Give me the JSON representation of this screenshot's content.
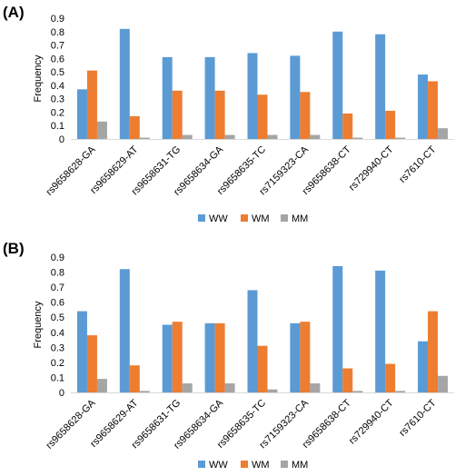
{
  "chart_data": [
    {
      "type": "bar",
      "panel_label": "(A)",
      "categories": [
        "rs9658628-GA",
        "rs9658629-AT",
        "rs9658631-TG",
        "rs9658634-GA",
        "rs9658635-TC",
        "rs7159323-CA",
        "rs9658638-CT",
        "rs729940-CT",
        "rs7610-CT"
      ],
      "series": [
        {
          "name": "WW",
          "color": "#5b9bd5",
          "values": [
            0.37,
            0.82,
            0.61,
            0.61,
            0.64,
            0.62,
            0.8,
            0.78,
            0.48
          ]
        },
        {
          "name": "WM",
          "color": "#ed7d31",
          "values": [
            0.51,
            0.17,
            0.36,
            0.36,
            0.33,
            0.35,
            0.19,
            0.21,
            0.43
          ]
        },
        {
          "name": "MM",
          "color": "#a5a5a5",
          "values": [
            0.13,
            0.01,
            0.03,
            0.03,
            0.03,
            0.03,
            0.01,
            0.01,
            0.08
          ]
        }
      ],
      "ylabel": "Frequency",
      "xlabel": "",
      "ylim": [
        0,
        0.9
      ],
      "yticks": [
        "0",
        "0.1",
        "0.2",
        "0.3",
        "0.4",
        "0.5",
        "0.6",
        "0.7",
        "0.8",
        "0.9"
      ],
      "legend": "bottom",
      "grid": false
    },
    {
      "type": "bar",
      "panel_label": "(B)",
      "categories": [
        "rs9658628-GA",
        "rs9658629-AT",
        "rs9658631-TG",
        "rs9658634-GA",
        "rs9658635-TC",
        "rs7159323-CA",
        "rs9658638-CT",
        "rs729940-CT",
        "rs7610-CT"
      ],
      "series": [
        {
          "name": "WW",
          "color": "#5b9bd5",
          "values": [
            0.54,
            0.82,
            0.45,
            0.46,
            0.68,
            0.46,
            0.84,
            0.81,
            0.34
          ]
        },
        {
          "name": "WM",
          "color": "#ed7d31",
          "values": [
            0.38,
            0.18,
            0.47,
            0.46,
            0.31,
            0.47,
            0.16,
            0.19,
            0.54
          ]
        },
        {
          "name": "MM",
          "color": "#a5a5a5",
          "values": [
            0.09,
            0.01,
            0.06,
            0.06,
            0.02,
            0.06,
            0.01,
            0.01,
            0.11
          ]
        }
      ],
      "ylabel": "Frequency",
      "xlabel": "",
      "ylim": [
        0,
        0.9
      ],
      "yticks": [
        "0",
        "0.1",
        "0.2",
        "0.3",
        "0.4",
        "0.5",
        "0.6",
        "0.7",
        "0.8",
        "0.9"
      ],
      "legend": "bottom",
      "grid": false
    }
  ]
}
